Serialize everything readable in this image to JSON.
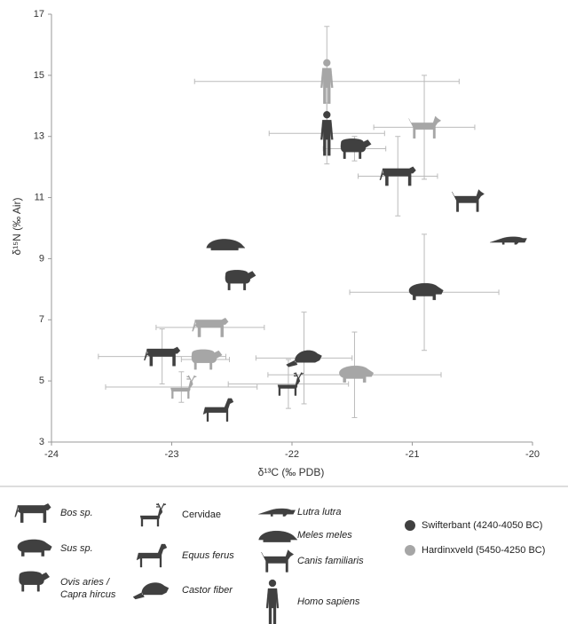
{
  "chart_data": {
    "type": "scatter",
    "x_label": "δ¹³C  (‰ PDB)",
    "y_label": "δ¹⁵N (‰ Air)",
    "xlim": [
      -24,
      -20
    ],
    "xticks": [
      -24,
      -23,
      -22,
      -21,
      -20
    ],
    "ylim": [
      3,
      17
    ],
    "yticks": [
      3,
      5,
      7,
      9,
      11,
      13,
      15,
      17
    ],
    "species_legend": [
      "Bos sp.",
      "Sus sp.",
      "Ovis aries / Capra hircus",
      "Cervidae",
      "Equus ferus",
      "Castor fiber",
      "Lutra lutra",
      "Meles meles",
      "Canis familiaris",
      "Homo sapiens"
    ],
    "series": [
      {
        "name": "Swifterbant (4240-4050 BC)",
        "color": "#404040",
        "species": [
          "Homo sapiens",
          "Ovis aries / Capra hircus",
          "Bos sp.",
          "Canis familiaris",
          "Lutra lutra",
          "Meles meles",
          "Ovis aries / Capra hircus",
          "Sus sp.",
          "Castor fiber",
          "Bos sp.",
          "Cervidae",
          "Equus ferus"
        ],
        "x": [
          -21.71,
          -21.48,
          -21.12,
          -20.54,
          -20.2,
          -22.56,
          -22.44,
          -20.9,
          -21.9,
          -23.08,
          -22.03,
          -22.62
        ],
        "values": [
          13.1,
          12.6,
          11.7,
          10.9,
          9.6,
          9.5,
          8.3,
          7.9,
          5.75,
          5.8,
          4.9,
          4.05
        ],
        "xerr": [
          0.48,
          0.26,
          0.33,
          null,
          null,
          null,
          null,
          0.62,
          0.4,
          0.53,
          0.5,
          null
        ],
        "yerr": [
          1.0,
          0.4,
          1.3,
          null,
          null,
          null,
          null,
          1.9,
          1.5,
          0.9,
          0.8,
          null
        ]
      },
      {
        "name": "Hardinxveld (5450-4250 BC)",
        "color": "#a6a6a6",
        "species": [
          "Homo sapiens",
          "Canis familiaris",
          "Bos sp.",
          "Ovis aries / Capra hircus",
          "Sus sp.",
          "Cervidae"
        ],
        "x": [
          -21.71,
          -20.9,
          -22.68,
          -22.72,
          -21.48,
          -22.92
        ],
        "values": [
          14.8,
          13.3,
          6.75,
          5.7,
          5.2,
          4.8
        ],
        "xerr": [
          1.1,
          0.42,
          0.45,
          0.2,
          0.72,
          0.63
        ],
        "yerr": [
          1.8,
          1.7,
          null,
          null,
          1.4,
          0.5
        ]
      }
    ]
  }
}
